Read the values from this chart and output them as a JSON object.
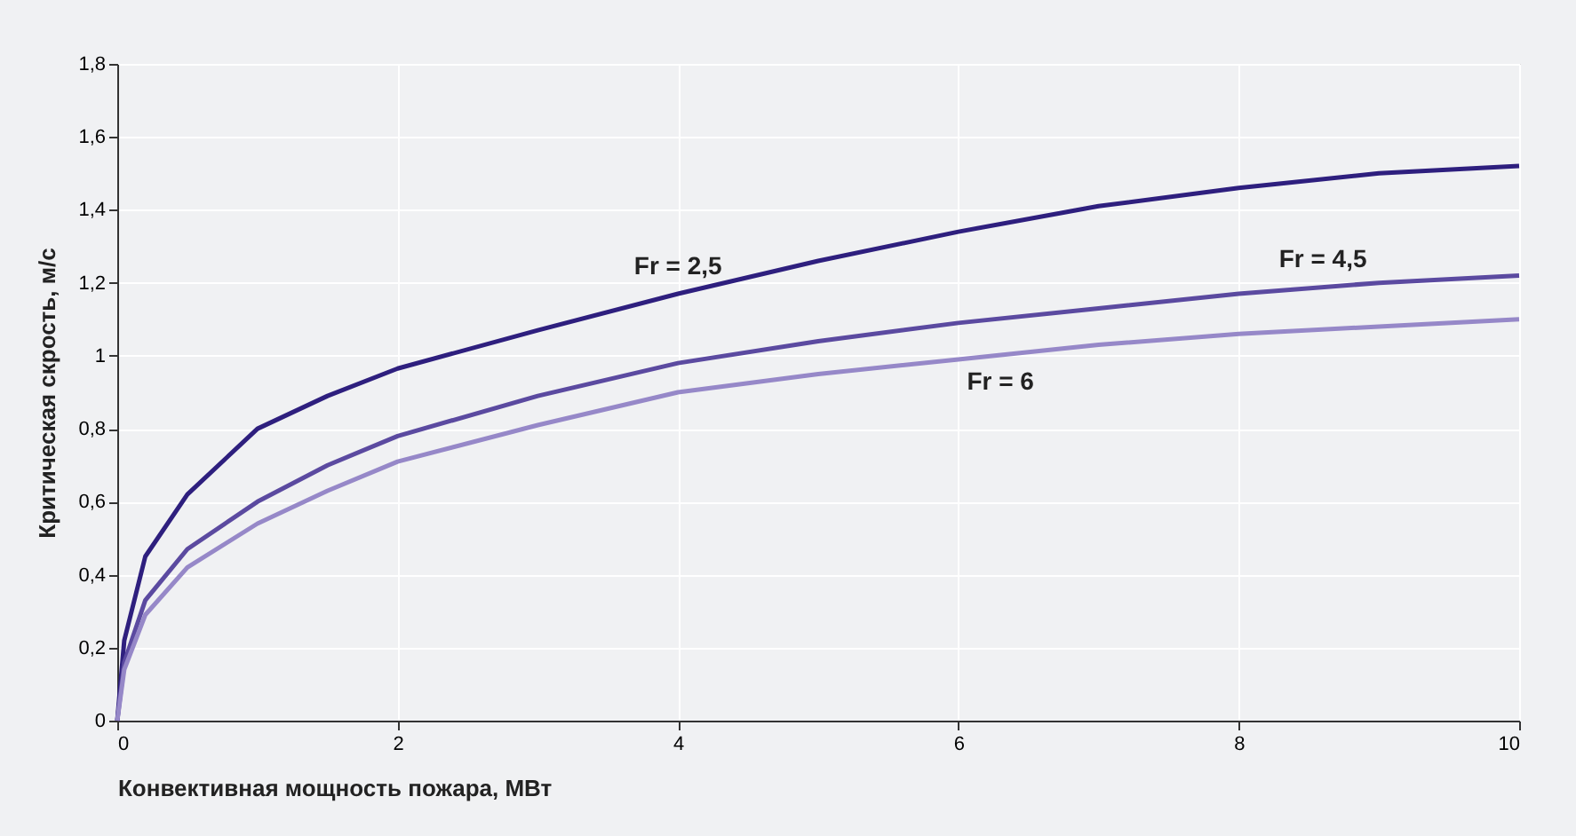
{
  "chart_data": {
    "type": "line",
    "xlabel": "Конвективная мощность пожара, МВт",
    "ylabel": "Критическая скрость, м/с",
    "xlim": [
      0,
      10
    ],
    "ylim": [
      0,
      1.8
    ],
    "xticks": [
      0,
      2,
      4,
      6,
      8,
      10
    ],
    "yticks": [
      0,
      {
        "value": 0.2,
        "label": "0,2"
      },
      {
        "value": 0.4,
        "label": "0,4"
      },
      {
        "value": 0.6,
        "label": "0,6"
      },
      {
        "value": 0.8,
        "label": "0,8"
      },
      1,
      {
        "value": 1.2,
        "label": "1,2"
      },
      {
        "value": 1.4,
        "label": "1,4"
      },
      {
        "value": 1.6,
        "label": "1,6"
      },
      {
        "value": 1.8,
        "label": "1,8"
      }
    ],
    "grid": true,
    "legend": false,
    "marker": "none",
    "line_style": "solid",
    "x": [
      0,
      0.05,
      0.2,
      0.5,
      1,
      1.5,
      2,
      3,
      4,
      5,
      6,
      7,
      8,
      9,
      10
    ],
    "series": [
      {
        "color": "#2e1f7e",
        "values": [
          0,
          0.22,
          0.45,
          0.62,
          0.8,
          0.89,
          0.965,
          1.07,
          1.17,
          1.26,
          1.34,
          1.41,
          1.46,
          1.5,
          1.52
        ]
      },
      {
        "color": "#5b4aa0",
        "values": [
          0,
          0.16,
          0.33,
          0.47,
          0.6,
          0.7,
          0.78,
          0.89,
          0.98,
          1.04,
          1.09,
          1.13,
          1.17,
          1.2,
          1.22
        ]
      },
      {
        "color": "#9688c8",
        "values": [
          0,
          0.14,
          0.29,
          0.42,
          0.54,
          0.63,
          0.71,
          0.81,
          0.9,
          0.95,
          0.99,
          1.03,
          1.06,
          1.08,
          1.1
        ]
      }
    ],
    "annotations": [
      {
        "text": "Fr = 2,5",
        "x": 4,
        "y": 1.17
      },
      {
        "text": "Fr = 4,5",
        "x": 8.6,
        "y": 1.19
      },
      {
        "text": "Fr = 6",
        "x": 6.3,
        "y": 1.0
      }
    ]
  }
}
